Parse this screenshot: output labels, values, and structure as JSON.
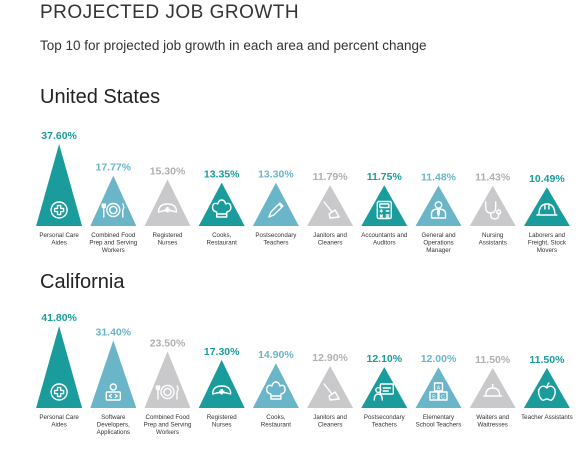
{
  "header": {
    "title": "PROJECTED JOB GROWTH",
    "subtitle": "Top 10 for projected job growth in each area and percent change"
  },
  "colors": {
    "dark_teal": "#1a9c9c",
    "light_teal": "#6bb5c8",
    "gray": "#c9c9cc",
    "icon_white": "#ffffff"
  },
  "chart_data": [
    {
      "type": "bar",
      "title": "United States",
      "categories": [
        "Personal Care Aides",
        "Combined Food Prep and Serving Workers",
        "Registered Nurses",
        "Cooks, Restaurant",
        "Postsecondary Teachers",
        "Janitors and Cleaners",
        "Accountants and Auditors",
        "General and Operations Manager",
        "Nursing Assistants",
        "Laborers and Freight, Stock Movers"
      ],
      "category_lines": [
        [
          "Personal Care",
          "Aides"
        ],
        [
          "Combined Food",
          "Prep and Serving",
          "Workers"
        ],
        [
          "Registered",
          "Nurses"
        ],
        [
          "Cooks,",
          "Restaurant"
        ],
        [
          "Postsecondary",
          "Teachers"
        ],
        [
          "Janitors and",
          "Cleaners"
        ],
        [
          "Accountants and",
          "Auditors"
        ],
        [
          "General and",
          "Operations",
          "Manager"
        ],
        [
          "Nursing",
          "Assistants"
        ],
        [
          "Laborers and",
          "Freight, Stock",
          "Movers"
        ]
      ],
      "values": [
        37.6,
        17.77,
        15.3,
        13.35,
        13.3,
        11.79,
        11.75,
        11.48,
        11.43,
        10.49
      ],
      "labels": [
        "37.60%",
        "17.77%",
        "15.30%",
        "13.35%",
        "13.30%",
        "11.79%",
        "11.75%",
        "11.48%",
        "11.43%",
        "10.49%"
      ],
      "icons": [
        "medical-cross-icon",
        "plate-icon",
        "nurse-cap-icon",
        "chef-hat-icon",
        "pencil-icon",
        "mop-icon",
        "calculator-icon",
        "manager-icon",
        "stethoscope-icon",
        "hard-hat-icon"
      ],
      "color_keys": [
        "dark_teal",
        "light_teal",
        "gray",
        "dark_teal",
        "light_teal",
        "gray",
        "dark_teal",
        "light_teal",
        "gray",
        "dark_teal"
      ]
    },
    {
      "type": "bar",
      "title": "California",
      "categories": [
        "Personal Care Aides",
        "Software Developers, Applications",
        "Combined Food Prep and Serving Workers",
        "Registered Nurses",
        "Cooks, Restaurant",
        "Janitors and Cleaners",
        "Postsecondary Teachers",
        "Elementary School Teachers",
        "Waiters and Waitresses",
        "Teacher Assistants"
      ],
      "category_lines": [
        [
          "Personal Care",
          "Aides"
        ],
        [
          "Software",
          "Developers,",
          "Applications"
        ],
        [
          "Combined Food",
          "Prep and Serving",
          "Workers"
        ],
        [
          "Registered",
          "Nurses"
        ],
        [
          "Cooks,",
          "Restaurant"
        ],
        [
          "Janitors and",
          "Cleaners"
        ],
        [
          "Postsecondary",
          "Teachers"
        ],
        [
          "Elementary",
          "School Teachers"
        ],
        [
          "Waiters and",
          "Waitresses"
        ],
        [
          "Teacher Assistants"
        ]
      ],
      "values": [
        41.8,
        31.4,
        23.5,
        17.3,
        14.9,
        12.9,
        12.1,
        12.0,
        11.5,
        11.5
      ],
      "labels": [
        "41.80%",
        "31.40%",
        "23.50%",
        "17.30%",
        "14.90%",
        "12.90%",
        "12.10%",
        "12.00%",
        "11.50%",
        "11.50%"
      ],
      "icons": [
        "medical-cross-icon",
        "developer-icon",
        "plate-icon",
        "nurse-cap-icon",
        "chef-hat-icon",
        "mop-icon",
        "teacher-board-icon",
        "abc-blocks-icon",
        "serving-cloche-icon",
        "apple-icon"
      ],
      "color_keys": [
        "dark_teal",
        "light_teal",
        "gray",
        "dark_teal",
        "light_teal",
        "gray",
        "dark_teal",
        "light_teal",
        "gray",
        "dark_teal"
      ]
    }
  ]
}
